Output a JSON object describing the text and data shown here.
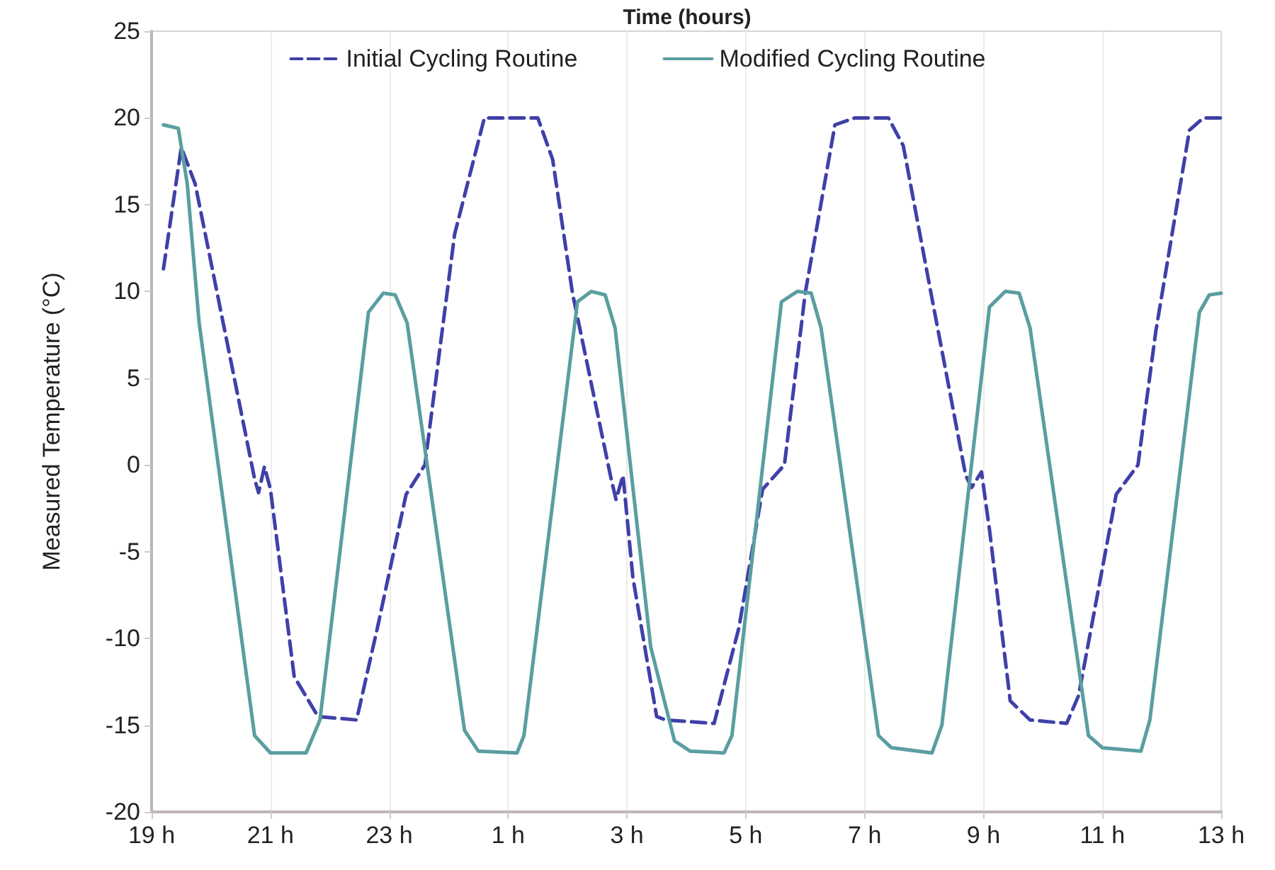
{
  "chart_data": {
    "type": "line",
    "xlabel": "Time (hours)",
    "ylabel": "Measured Temperature (°C)",
    "xlim": [
      "--01-01T19:00",
      "--01-02T13:00"
    ],
    "xticks": [
      {
        "value": "--01-01T19:00",
        "label": "19 h"
      },
      {
        "value": "--01-01T21:00",
        "label": "21 h"
      },
      {
        "value": "--01-01T23:00",
        "label": "23 h"
      },
      {
        "value": "--01-02T01:00",
        "label": "1 h"
      },
      {
        "value": "--01-02T03:00",
        "label": "3 h"
      },
      {
        "value": "--01-02T05:00",
        "label": "5 h"
      },
      {
        "value": "--01-02T07:00",
        "label": "7 h"
      },
      {
        "value": "--01-02T09:00",
        "label": "9 h"
      },
      {
        "value": "--01-02T11:00",
        "label": "11 h"
      },
      {
        "value": "--01-02T13:00",
        "label": "13 h"
      }
    ],
    "ylim": [
      -20,
      25
    ],
    "yticks": [
      -20,
      -15,
      -10,
      -5,
      0,
      5,
      10,
      15,
      20,
      25
    ],
    "grid": "x",
    "legend": "top",
    "marker": "none",
    "series": [
      {
        "name": "Initial Cycling Routine",
        "color": "#3f40a8",
        "line_style": "dashed",
        "x": [
          "--01-01T19:12",
          "--01-01T19:30",
          "--01-01T19:44",
          "--01-01T20:44",
          "--01-01T20:48",
          "--01-01T20:54",
          "--01-01T21:00",
          "--01-01T21:24",
          "--01-01T21:48",
          "--01-01T22:27",
          "--01-01T22:48",
          "--01-01T23:17",
          "--01-01T23:36",
          "--01-02T00:06",
          "--01-02T00:36",
          "--01-02T01:30",
          "--01-02T01:45",
          "--01-02T02:05",
          "--01-02T02:44",
          "--01-02T02:49",
          "--01-02T02:56",
          "--01-02T03:06",
          "--01-02T03:30",
          "--01-02T03:39",
          "--01-02T04:28",
          "--01-02T04:53",
          "--01-02T05:17",
          "--01-02T05:39",
          "--01-02T06:00",
          "--01-02T06:30",
          "--01-02T06:50",
          "--01-02T07:24",
          "--01-02T07:39",
          "--01-02T08:08",
          "--01-02T08:42",
          "--01-02T08:48",
          "--01-02T08:58",
          "--01-02T09:06",
          "--01-02T09:27",
          "--01-02T09:47",
          "--01-02T10:24",
          "--01-02T10:36",
          "--01-02T11:14",
          "--01-02T11:36",
          "--01-02T11:54",
          "--01-02T12:28",
          "--01-02T12:42",
          "--01-02T13:00"
        ],
        "values": [
          11.3,
          18.3,
          16.2,
          -0.8,
          -1.6,
          -0.1,
          -1.4,
          -12.2,
          -14.5,
          -14.7,
          -9.4,
          -1.7,
          0,
          13.3,
          20,
          20,
          17.6,
          9.9,
          -0.8,
          -2,
          -0.6,
          -6.5,
          -14.5,
          -14.7,
          -14.9,
          -9.4,
          -1.4,
          0,
          9.9,
          19.6,
          20,
          20,
          18.4,
          9.6,
          -0.6,
          -1.3,
          -0.4,
          -3.7,
          -13.6,
          -14.7,
          -14.9,
          -13.3,
          -1.7,
          0,
          7.7,
          19.3,
          20,
          20
        ]
      },
      {
        "name": "Modified Cycling Routine",
        "color": "#5a9ea0",
        "line_style": "solid",
        "x": [
          "--01-01T19:12",
          "--01-01T19:27",
          "--01-01T19:36",
          "--01-01T19:48",
          "--01-01T20:44",
          "--01-01T21:00",
          "--01-01T21:36",
          "--01-01T21:50",
          "--01-01T22:39",
          "--01-01T22:54",
          "--01-01T23:06",
          "--01-01T23:18",
          "--01-02T00:16",
          "--01-02T00:30",
          "--01-02T01:09",
          "--01-02T01:16",
          "--01-02T02:10",
          "--01-02T02:24",
          "--01-02T02:38",
          "--01-02T02:48",
          "--01-02T03:24",
          "--01-02T03:48",
          "--01-02T04:04",
          "--01-02T04:38",
          "--01-02T04:46",
          "--01-02T05:36",
          "--01-02T05:52",
          "--01-02T06:06",
          "--01-02T06:16",
          "--01-02T07:14",
          "--01-02T07:27",
          "--01-02T08:08",
          "--01-02T08:18",
          "--01-02T09:06",
          "--01-02T09:22",
          "--01-02T09:36",
          "--01-02T09:47",
          "--01-02T10:46",
          "--01-02T11:00",
          "--01-02T11:39",
          "--01-02T11:48",
          "--01-02T12:38",
          "--01-02T12:48",
          "--01-02T13:00"
        ],
        "values": [
          19.6,
          19.4,
          16.2,
          8.2,
          -15.6,
          -16.6,
          -16.6,
          -14.7,
          8.8,
          9.9,
          9.8,
          8.2,
          -15.3,
          -16.5,
          -16.6,
          -15.6,
          9.4,
          10,
          9.8,
          7.9,
          -10.5,
          -15.9,
          -16.5,
          -16.6,
          -15.6,
          9.4,
          10,
          9.9,
          7.9,
          -15.6,
          -16.3,
          -16.6,
          -15,
          9.1,
          10,
          9.9,
          7.9,
          -15.6,
          -16.3,
          -16.5,
          -14.7,
          8.8,
          9.8,
          9.9
        ]
      }
    ]
  }
}
